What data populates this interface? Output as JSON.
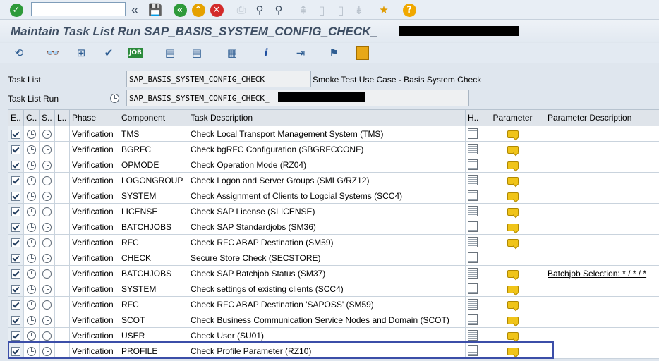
{
  "command_field": {
    "value": ""
  },
  "page": {
    "title": "Maintain Task List Run SAP_BASIS_SYSTEM_CONFIG_CHECK_"
  },
  "header": {
    "task_list_label": "Task List",
    "task_list_value": "SAP_BASIS_SYSTEM_CONFIG_CHECK",
    "task_list_desc": "Smoke Test Use Case - Basis System Check",
    "task_list_run_label": "Task List Run",
    "task_list_run_value": "SAP_BASIS_SYSTEM_CONFIG_CHECK_"
  },
  "table": {
    "columns": [
      "E..",
      "C..",
      "S..",
      "L..",
      "Phase",
      "Component",
      "Task Description",
      "H..",
      "Parameter",
      "Parameter Description"
    ],
    "rows": [
      {
        "phase": "Verification",
        "component": "TMS",
        "desc": "Check Local Transport Management System (TMS)",
        "param": true,
        "param_desc": ""
      },
      {
        "phase": "Verification",
        "component": "BGRFC",
        "desc": "Check bgRFC Configuration (SBGRFCCONF)",
        "param": true,
        "param_desc": ""
      },
      {
        "phase": "Verification",
        "component": "OPMODE",
        "desc": "Check Operation Mode (RZ04)",
        "param": true,
        "param_desc": ""
      },
      {
        "phase": "Verification",
        "component": "LOGONGROUP",
        "desc": "Check Logon and Server Groups (SMLG/RZ12)",
        "param": true,
        "param_desc": ""
      },
      {
        "phase": "Verification",
        "component": "SYSTEM",
        "desc": "Check Assignment of Clients to Logcial Systems (SCC4)",
        "param": true,
        "param_desc": ""
      },
      {
        "phase": "Verification",
        "component": "LICENSE",
        "desc": "Check SAP License (SLICENSE)",
        "param": true,
        "param_desc": ""
      },
      {
        "phase": "Verification",
        "component": "BATCHJOBS",
        "desc": "Check SAP Standardjobs (SM36)",
        "param": true,
        "param_desc": ""
      },
      {
        "phase": "Verification",
        "component": "RFC",
        "desc": "Check RFC ABAP Destination (SM59)",
        "param": true,
        "param_desc": ""
      },
      {
        "phase": "Verification",
        "component": "CHECK",
        "desc": "Secure Store Check (SECSTORE)",
        "param": false,
        "param_desc": ""
      },
      {
        "phase": "Verification",
        "component": "BATCHJOBS",
        "desc": "Check SAP Batchjob Status (SM37)",
        "param": true,
        "param_desc": "Batchjob Selection: * / * / *"
      },
      {
        "phase": "Verification",
        "component": "SYSTEM",
        "desc": "Check settings of existing clients (SCC4)",
        "param": true,
        "param_desc": ""
      },
      {
        "phase": "Verification",
        "component": "RFC",
        "desc": "Check RFC ABAP Destination 'SAPOSS' (SM59)",
        "param": true,
        "param_desc": ""
      },
      {
        "phase": "Verification",
        "component": "SCOT",
        "desc": "Check Business Communication Service Nodes and Domain (SCOT)",
        "param": true,
        "param_desc": ""
      },
      {
        "phase": "Verification",
        "component": "USER",
        "desc": "Check User (SU01)",
        "param": true,
        "param_desc": ""
      },
      {
        "phase": "Verification",
        "component": "PROFILE",
        "desc": "Check Profile Parameter (RZ10)",
        "param": true,
        "param_desc": ""
      }
    ]
  }
}
